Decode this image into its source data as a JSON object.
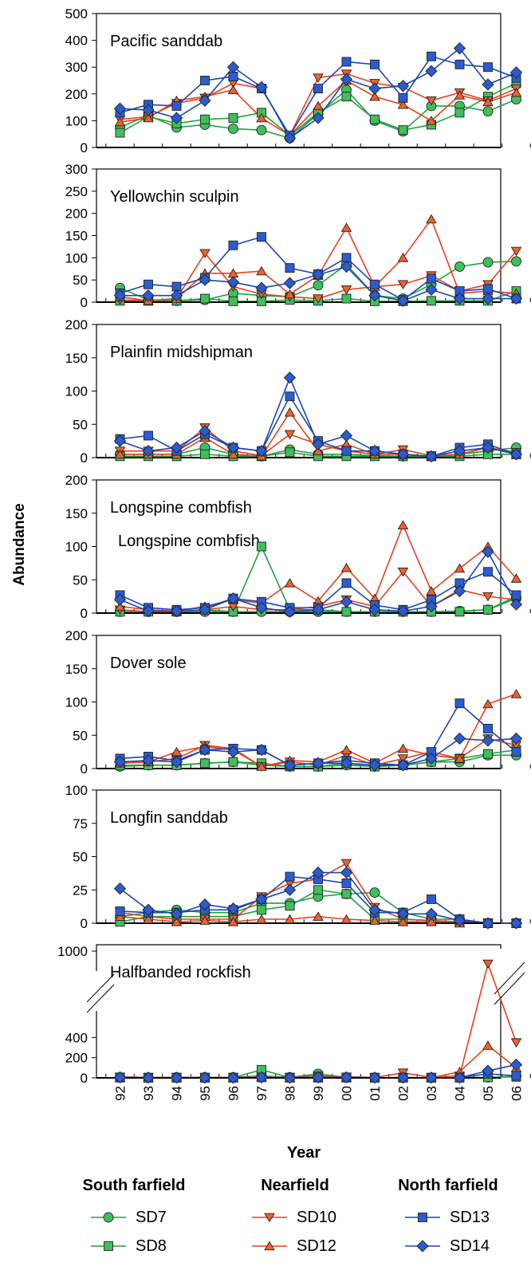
{
  "figure": {
    "y_axis_label": "Abundance",
    "x_axis_label": "Year",
    "x_tick_labels": [
      "92",
      "93",
      "94",
      "95",
      "96",
      "97",
      "98",
      "99",
      "00",
      "01",
      "02",
      "03",
      "04",
      "05",
      "06"
    ],
    "colors": {
      "green": "#1fa33a",
      "green_fill": "#3fbf5a",
      "red": "#e8401c",
      "red_fill": "#f0602c",
      "blue": "#1a47b4",
      "blue_fill": "#2a5cd0"
    },
    "legend": {
      "groups": [
        {
          "title": "South farfield",
          "entries": [
            {
              "label": "SD7",
              "color": "green",
              "marker": "circle"
            },
            {
              "label": "SD8",
              "color": "green",
              "marker": "square"
            }
          ]
        },
        {
          "title": "Nearfield",
          "entries": [
            {
              "label": "SD10",
              "color": "red",
              "marker": "triangle-down"
            },
            {
              "label": "SD12",
              "color": "red",
              "marker": "triangle-up"
            }
          ]
        },
        {
          "title": "North farfield",
          "entries": [
            {
              "label": "SD13",
              "color": "blue",
              "marker": "square"
            },
            {
              "label": "SD14",
              "color": "blue",
              "marker": "diamond"
            }
          ]
        }
      ]
    }
  },
  "chart_data": [
    {
      "type": "line",
      "title": "Pacific sanddab",
      "ylim": [
        0,
        500
      ],
      "yticks": [
        0,
        100,
        200,
        300,
        400,
        500
      ],
      "x": [
        "92",
        "93",
        "94",
        "95",
        "96",
        "97",
        "98",
        "99",
        "00",
        "01",
        "02",
        "03",
        "04",
        "05",
        "06"
      ],
      "series": [
        {
          "name": "SD7",
          "values": [
            75,
            120,
            75,
            85,
            70,
            65,
            35,
            125,
            215,
            100,
            60,
            155,
            155,
            135,
            180
          ]
        },
        {
          "name": "SD8",
          "values": [
            55,
            115,
            90,
            105,
            110,
            130,
            45,
            130,
            190,
            105,
            65,
            85,
            130,
            190,
            240
          ]
        },
        {
          "name": "SD10",
          "values": [
            105,
            115,
            165,
            185,
            240,
            220,
            45,
            260,
            275,
            240,
            225,
            175,
            205,
            175,
            220
          ]
        },
        {
          "name": "SD12",
          "values": [
            95,
            110,
            175,
            190,
            215,
            110,
            45,
            155,
            250,
            190,
            160,
            100,
            195,
            170,
            205
          ]
        },
        {
          "name": "SD13",
          "values": [
            130,
            160,
            155,
            250,
            265,
            220,
            45,
            220,
            320,
            310,
            185,
            340,
            310,
            300,
            260
          ]
        },
        {
          "name": "SD14",
          "values": [
            145,
            140,
            110,
            175,
            300,
            225,
            35,
            110,
            255,
            220,
            230,
            285,
            370,
            235,
            280
          ]
        }
      ]
    },
    {
      "type": "line",
      "title": "Yellowchin sculpin",
      "ylim": [
        0,
        300
      ],
      "yticks": [
        0,
        50,
        100,
        150,
        200,
        250,
        300
      ],
      "x": [
        "92",
        "93",
        "94",
        "95",
        "96",
        "97",
        "98",
        "99",
        "00",
        "01",
        "02",
        "03",
        "04",
        "05",
        "06"
      ],
      "series": [
        {
          "name": "SD7",
          "values": [
            32,
            5,
            3,
            5,
            20,
            15,
            12,
            38,
            85,
            15,
            8,
            40,
            80,
            90,
            92
          ]
        },
        {
          "name": "SD8",
          "values": [
            3,
            3,
            3,
            8,
            2,
            2,
            5,
            3,
            8,
            2,
            2,
            3,
            3,
            3,
            25
          ]
        },
        {
          "name": "SD10",
          "values": [
            5,
            3,
            8,
            110,
            35,
            18,
            12,
            8,
            28,
            35,
            40,
            60,
            25,
            40,
            115
          ]
        },
        {
          "name": "SD12",
          "values": [
            12,
            3,
            8,
            65,
            65,
            70,
            18,
            60,
            168,
            35,
            100,
            187,
            20,
            25,
            20
          ]
        },
        {
          "name": "SD13",
          "values": [
            20,
            40,
            35,
            55,
            128,
            147,
            77,
            63,
            100,
            40,
            5,
            53,
            25,
            30,
            8
          ]
        },
        {
          "name": "SD14",
          "values": [
            15,
            15,
            15,
            50,
            45,
            32,
            43,
            62,
            80,
            15,
            3,
            28,
            8,
            8,
            8
          ]
        }
      ]
    },
    {
      "type": "line",
      "title": "Plainfin midshipman",
      "ylim": [
        0,
        200
      ],
      "yticks": [
        0,
        50,
        100,
        150,
        200
      ],
      "x": [
        "92",
        "93",
        "94",
        "95",
        "96",
        "97",
        "98",
        "99",
        "00",
        "01",
        "02",
        "03",
        "04",
        "05",
        "06"
      ],
      "series": [
        {
          "name": "SD7",
          "values": [
            5,
            5,
            5,
            15,
            5,
            2,
            12,
            5,
            5,
            3,
            2,
            2,
            5,
            10,
            15
          ]
        },
        {
          "name": "SD8",
          "values": [
            2,
            2,
            2,
            5,
            2,
            2,
            8,
            2,
            2,
            2,
            2,
            2,
            2,
            5,
            5
          ]
        },
        {
          "name": "SD10",
          "values": [
            10,
            10,
            10,
            45,
            10,
            3,
            35,
            20,
            10,
            5,
            12,
            3,
            5,
            15,
            8
          ]
        },
        {
          "name": "SD12",
          "values": [
            5,
            5,
            5,
            30,
            5,
            2,
            68,
            10,
            20,
            5,
            5,
            2,
            5,
            15,
            5
          ]
        },
        {
          "name": "SD13",
          "values": [
            28,
            33,
            10,
            35,
            15,
            10,
            92,
            25,
            10,
            10,
            5,
            2,
            15,
            20,
            5
          ]
        },
        {
          "name": "SD14",
          "values": [
            25,
            10,
            15,
            40,
            15,
            10,
            120,
            20,
            33,
            10,
            5,
            2,
            10,
            15,
            5
          ]
        }
      ]
    },
    {
      "type": "line",
      "title": "Longspine combfish",
      "ylim": [
        0,
        200
      ],
      "yticks": [
        0,
        50,
        100,
        150,
        200
      ],
      "annotations": [
        "Longspine combfish"
      ],
      "x": [
        "92",
        "93",
        "94",
        "95",
        "96",
        "97",
        "98",
        "99",
        "00",
        "01",
        "02",
        "03",
        "04",
        "05",
        "06"
      ],
      "series": [
        {
          "name": "SD7",
          "values": [
            2,
            2,
            2,
            2,
            2,
            2,
            2,
            2,
            2,
            2,
            2,
            2,
            3,
            5,
            22
          ]
        },
        {
          "name": "SD8",
          "values": [
            2,
            2,
            2,
            5,
            2,
            100,
            5,
            5,
            2,
            2,
            2,
            2,
            2,
            5,
            25
          ]
        },
        {
          "name": "SD10",
          "values": [
            5,
            2,
            2,
            5,
            10,
            5,
            5,
            10,
            20,
            10,
            62,
            10,
            35,
            25,
            20
          ]
        },
        {
          "name": "SD12",
          "values": [
            10,
            5,
            3,
            10,
            20,
            15,
            45,
            18,
            68,
            22,
            132,
            33,
            67,
            100,
            52
          ]
        },
        {
          "name": "SD13",
          "values": [
            27,
            8,
            5,
            8,
            22,
            17,
            8,
            8,
            45,
            12,
            5,
            20,
            45,
            62,
            27
          ]
        },
        {
          "name": "SD14",
          "values": [
            20,
            3,
            3,
            5,
            22,
            8,
            2,
            5,
            17,
            5,
            3,
            10,
            33,
            92,
            13
          ]
        }
      ]
    },
    {
      "type": "line",
      "title": "Dover sole",
      "ylim": [
        0,
        200
      ],
      "yticks": [
        0,
        50,
        100,
        150,
        200
      ],
      "x": [
        "92",
        "93",
        "94",
        "95",
        "96",
        "97",
        "98",
        "99",
        "00",
        "01",
        "02",
        "03",
        "04",
        "05",
        "06"
      ],
      "series": [
        {
          "name": "SD7",
          "values": [
            3,
            5,
            5,
            8,
            10,
            5,
            3,
            3,
            5,
            3,
            5,
            10,
            10,
            20,
            20
          ]
        },
        {
          "name": "SD8",
          "values": [
            5,
            5,
            5,
            8,
            10,
            8,
            3,
            3,
            8,
            3,
            5,
            10,
            15,
            22,
            28
          ]
        },
        {
          "name": "SD10",
          "values": [
            8,
            10,
            15,
            35,
            30,
            3,
            10,
            5,
            20,
            5,
            15,
            25,
            15,
            45,
            35
          ]
        },
        {
          "name": "SD12",
          "values": [
            8,
            10,
            25,
            33,
            28,
            3,
            12,
            10,
            28,
            8,
            30,
            20,
            15,
            97,
            112
          ]
        },
        {
          "name": "SD13",
          "values": [
            15,
            18,
            12,
            28,
            30,
            28,
            5,
            8,
            12,
            8,
            5,
            25,
            98,
            60,
            25
          ]
        },
        {
          "name": "SD14",
          "values": [
            10,
            12,
            10,
            28,
            25,
            28,
            5,
            8,
            8,
            5,
            5,
            15,
            45,
            42,
            45
          ]
        }
      ]
    },
    {
      "type": "line",
      "title": "Longfin sanddab",
      "ylim": [
        0,
        100
      ],
      "yticks": [
        0,
        25,
        50,
        75,
        100
      ],
      "x": [
        "92",
        "93",
        "94",
        "95",
        "96",
        "97",
        "98",
        "99",
        "00",
        "01",
        "02",
        "03",
        "04",
        "05",
        "06"
      ],
      "series": [
        {
          "name": "SD7",
          "values": [
            5,
            8,
            10,
            8,
            8,
            15,
            15,
            20,
            22,
            23,
            8,
            3,
            3,
            0,
            0
          ]
        },
        {
          "name": "SD8",
          "values": [
            1,
            5,
            5,
            5,
            5,
            10,
            13,
            25,
            22,
            3,
            3,
            2,
            1,
            0,
            0
          ]
        },
        {
          "name": "SD10",
          "values": [
            8,
            5,
            3,
            3,
            3,
            20,
            30,
            33,
            45,
            12,
            3,
            2,
            1,
            0,
            0
          ]
        },
        {
          "name": "SD12",
          "values": [
            5,
            3,
            1,
            2,
            1,
            3,
            3,
            5,
            3,
            2,
            1,
            1,
            0,
            0,
            0
          ]
        },
        {
          "name": "SD13",
          "values": [
            9,
            8,
            8,
            10,
            10,
            18,
            35,
            33,
            30,
            8,
            8,
            18,
            3,
            0,
            0
          ]
        },
        {
          "name": "SD14",
          "values": [
            26,
            10,
            7,
            14,
            11,
            18,
            25,
            38,
            38,
            10,
            7,
            7,
            2,
            0,
            0
          ]
        }
      ]
    },
    {
      "type": "line",
      "title": "Halfbanded rockfish",
      "ylim": [
        0,
        1000
      ],
      "yticks": [
        0,
        200,
        400,
        1000
      ],
      "broken_axis": [
        450,
        950
      ],
      "x": [
        "92",
        "93",
        "94",
        "95",
        "96",
        "97",
        "98",
        "99",
        "00",
        "01",
        "02",
        "03",
        "04",
        "05",
        "06"
      ],
      "series": [
        {
          "name": "SD7",
          "values": [
            5,
            2,
            5,
            5,
            5,
            20,
            5,
            40,
            5,
            2,
            2,
            2,
            2,
            5,
            15
          ]
        },
        {
          "name": "SD8",
          "values": [
            2,
            2,
            2,
            2,
            2,
            80,
            2,
            2,
            2,
            2,
            2,
            2,
            2,
            5,
            10
          ]
        },
        {
          "name": "SD10",
          "values": [
            10,
            5,
            5,
            5,
            5,
            10,
            5,
            20,
            10,
            5,
            50,
            5,
            20,
            960,
            350
          ]
        },
        {
          "name": "SD12",
          "values": [
            5,
            2,
            2,
            2,
            2,
            5,
            2,
            5,
            5,
            2,
            5,
            2,
            60,
            320,
            100
          ]
        },
        {
          "name": "SD13",
          "values": [
            5,
            2,
            2,
            2,
            2,
            5,
            2,
            5,
            5,
            2,
            2,
            2,
            2,
            40,
            20
          ]
        },
        {
          "name": "SD14",
          "values": [
            5,
            2,
            2,
            2,
            2,
            5,
            2,
            5,
            5,
            2,
            2,
            2,
            2,
            70,
            130
          ]
        }
      ]
    }
  ]
}
